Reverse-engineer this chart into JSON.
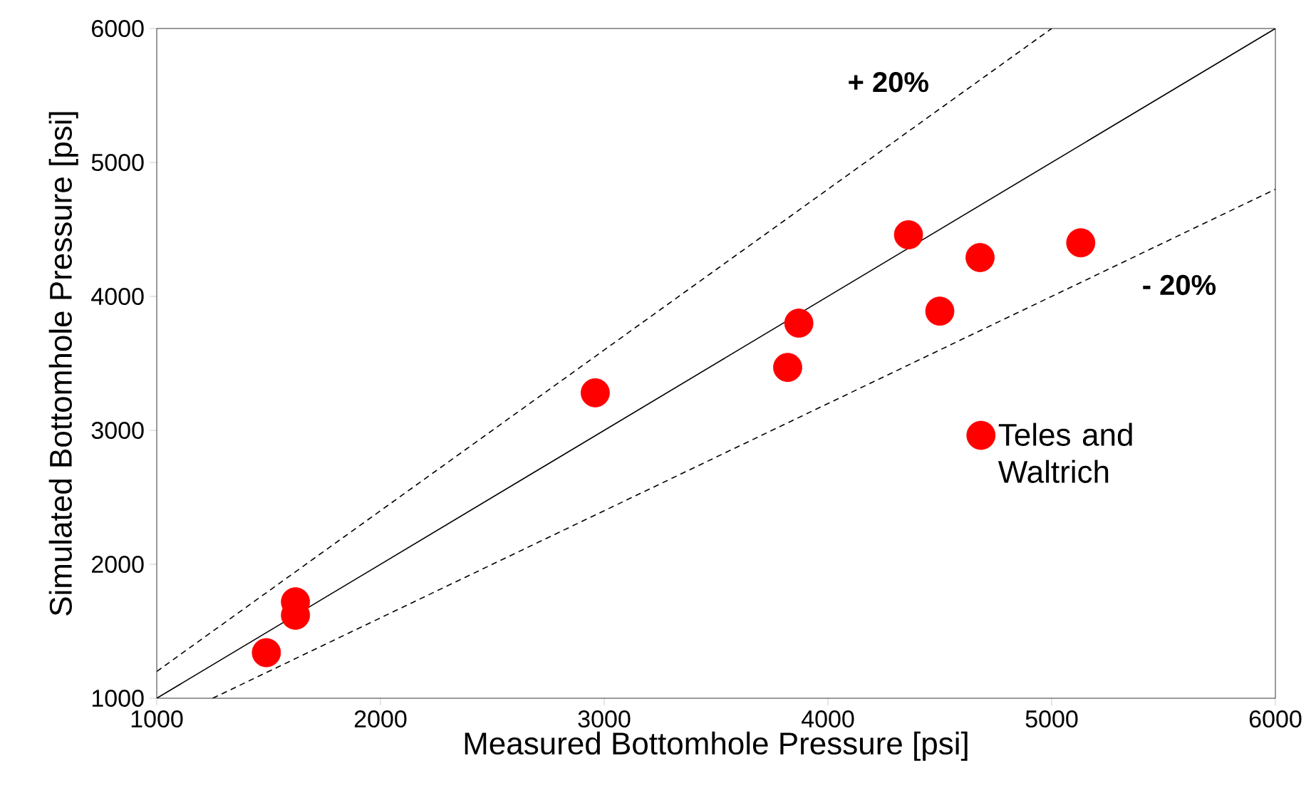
{
  "chart_data": {
    "type": "scatter",
    "xlabel": "Measured  Bottomhole Pressure [psi]",
    "ylabel": "Simulated Bottomhole Pressure [psi]",
    "xlim": [
      1000,
      6000
    ],
    "ylim": [
      1000,
      6000
    ],
    "xticks": [
      1000,
      2000,
      3000,
      4000,
      5000,
      6000
    ],
    "yticks": [
      1000,
      2000,
      3000,
      4000,
      5000,
      6000
    ],
    "grid": false,
    "legend": "right",
    "series": [
      {
        "name": "Teles and Waltrich",
        "marker": "circle",
        "color": "#ff0000",
        "x": [
          1490,
          1620,
          1620,
          2960,
          3820,
          3870,
          4360,
          4500,
          4680,
          5130
        ],
        "values": [
          1340,
          1720,
          1620,
          3280,
          3470,
          3800,
          4460,
          3890,
          4290,
          4400
        ]
      },
      {
        "type": "line",
        "color": "#000000",
        "line_style": "solid",
        "x": [
          1000,
          6000
        ],
        "values": [
          1000,
          6000
        ]
      },
      {
        "type": "line",
        "color": "#000000",
        "line_style": "dashed",
        "x": [
          1000,
          5000
        ],
        "values": [
          1200,
          6000
        ]
      },
      {
        "type": "line",
        "color": "#000000",
        "line_style": "dashed",
        "x": [
          1250,
          6000
        ],
        "values": [
          1000,
          4800
        ]
      }
    ],
    "annotations": [
      "+ 20%",
      "- 20%"
    ]
  }
}
